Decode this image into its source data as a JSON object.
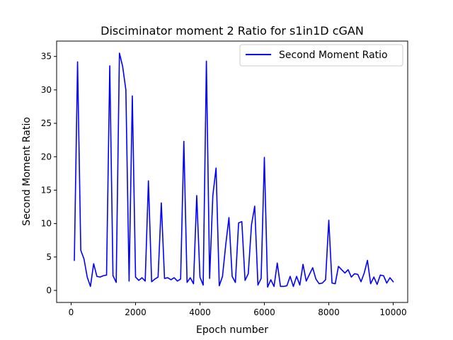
{
  "chart_data": {
    "type": "line",
    "title": "Disciminator moment 2 Ratio for s1in1D cGAN",
    "xlabel": "Epoch number",
    "ylabel": "Second Moment Ratio",
    "xlim": [
      -450,
      10450
    ],
    "ylim": [
      -1.8,
      37.3
    ],
    "xticks": [
      0,
      2000,
      4000,
      6000,
      8000,
      10000
    ],
    "yticks": [
      0,
      5,
      10,
      15,
      20,
      25,
      30,
      35
    ],
    "grid": false,
    "legend_position": "top-right",
    "series": [
      {
        "name": "Second Moment Ratio",
        "color": "#0000ff",
        "x": [
          100,
          200,
          300,
          400,
          500,
          600,
          700,
          800,
          900,
          1000,
          1100,
          1200,
          1300,
          1400,
          1500,
          1600,
          1700,
          1800,
          1900,
          2000,
          2100,
          2200,
          2300,
          2400,
          2500,
          2600,
          2700,
          2800,
          2900,
          3000,
          3100,
          3200,
          3300,
          3400,
          3500,
          3600,
          3700,
          3800,
          3900,
          4000,
          4100,
          4200,
          4300,
          4400,
          4500,
          4600,
          4700,
          4800,
          4900,
          5000,
          5100,
          5200,
          5300,
          5400,
          5500,
          5600,
          5700,
          5800,
          5900,
          6000,
          6100,
          6200,
          6300,
          6400,
          6500,
          6600,
          6700,
          6800,
          6900,
          7000,
          7100,
          7200,
          7300,
          7400,
          7500,
          7600,
          7700,
          7800,
          7900,
          8000,
          8100,
          8200,
          8300,
          8400,
          8500,
          8600,
          8700,
          8800,
          8900,
          9000,
          9100,
          9200,
          9300,
          9400,
          9500,
          9600,
          9700,
          9800,
          9900,
          10000
        ],
        "y": [
          4.5,
          34.2,
          6.0,
          4.7,
          2.0,
          0.6,
          4.0,
          2.1,
          2.0,
          2.2,
          2.3,
          33.6,
          2.2,
          1.2,
          35.5,
          33.5,
          30.0,
          1.4,
          29.1,
          2.0,
          1.5,
          1.9,
          1.4,
          16.4,
          1.3,
          1.7,
          2.0,
          13.1,
          1.8,
          1.9,
          1.6,
          1.9,
          1.4,
          1.7,
          22.3,
          1.2,
          1.9,
          1.0,
          14.2,
          2.0,
          0.8,
          34.3,
          1.8,
          14.2,
          18.3,
          0.7,
          2.1,
          6.8,
          10.9,
          2.1,
          1.2,
          10.1,
          10.3,
          1.5,
          2.5,
          9.8,
          12.6,
          0.8,
          1.8,
          19.9,
          0.5,
          1.6,
          0.6,
          4.1,
          0.6,
          0.6,
          0.7,
          2.1,
          0.6,
          2.1,
          0.8,
          3.9,
          1.4,
          2.4,
          3.4,
          1.7,
          1.0,
          1.1,
          1.6,
          10.5,
          1.1,
          1.0,
          3.6,
          3.1,
          2.6,
          3.1,
          2.0,
          2.5,
          2.4,
          1.3,
          2.6,
          4.5,
          1.0,
          2.0,
          0.9,
          2.3,
          2.2,
          1.1,
          1.9,
          1.3
        ]
      }
    ]
  }
}
